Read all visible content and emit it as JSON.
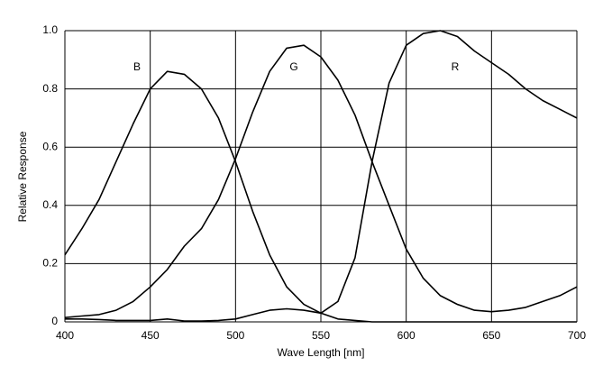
{
  "chart_data": {
    "type": "line",
    "xlabel": "Wave Length [nm]",
    "ylabel": "Relative Response",
    "x": [
      400,
      410,
      420,
      430,
      440,
      450,
      460,
      470,
      480,
      490,
      500,
      510,
      520,
      530,
      540,
      550,
      560,
      570,
      580,
      590,
      600,
      610,
      620,
      630,
      640,
      650,
      660,
      670,
      680,
      690,
      700
    ],
    "series": [
      {
        "name": "B",
        "color": "#000000",
        "values": [
          0.23,
          0.32,
          0.42,
          0.55,
          0.68,
          0.8,
          0.86,
          0.85,
          0.8,
          0.7,
          0.55,
          0.38,
          0.23,
          0.12,
          0.06,
          0.03,
          0.01,
          0.005,
          0,
          0,
          0,
          0,
          0,
          0,
          0,
          0,
          0,
          0,
          0,
          0,
          0
        ]
      },
      {
        "name": "G",
        "color": "#000000",
        "values": [
          0.015,
          0.02,
          0.025,
          0.04,
          0.07,
          0.12,
          0.18,
          0.26,
          0.32,
          0.42,
          0.56,
          0.72,
          0.86,
          0.94,
          0.95,
          0.91,
          0.83,
          0.71,
          0.55,
          0.4,
          0.25,
          0.15,
          0.09,
          0.06,
          0.04,
          0.035,
          0.04,
          0.05,
          0.07,
          0.09,
          0.12
        ]
      },
      {
        "name": "R",
        "color": "#000000",
        "values": [
          0.01,
          0.01,
          0.008,
          0.005,
          0.005,
          0.005,
          0.01,
          0.003,
          0.003,
          0.005,
          0.01,
          0.025,
          0.04,
          0.045,
          0.04,
          0.03,
          0.07,
          0.22,
          0.55,
          0.82,
          0.95,
          0.99,
          1.0,
          0.98,
          0.93,
          0.89,
          0.85,
          0.8,
          0.76,
          0.73,
          0.7
        ]
      }
    ],
    "xlim": [
      400,
      700
    ],
    "xticks": [
      400,
      450,
      500,
      550,
      600,
      650,
      700
    ],
    "ylim": [
      0,
      1
    ],
    "yticks": [
      0,
      0.2,
      0.4,
      0.6,
      0.8,
      {
        "value": 1,
        "label": "1.0"
      }
    ],
    "grid": true
  }
}
